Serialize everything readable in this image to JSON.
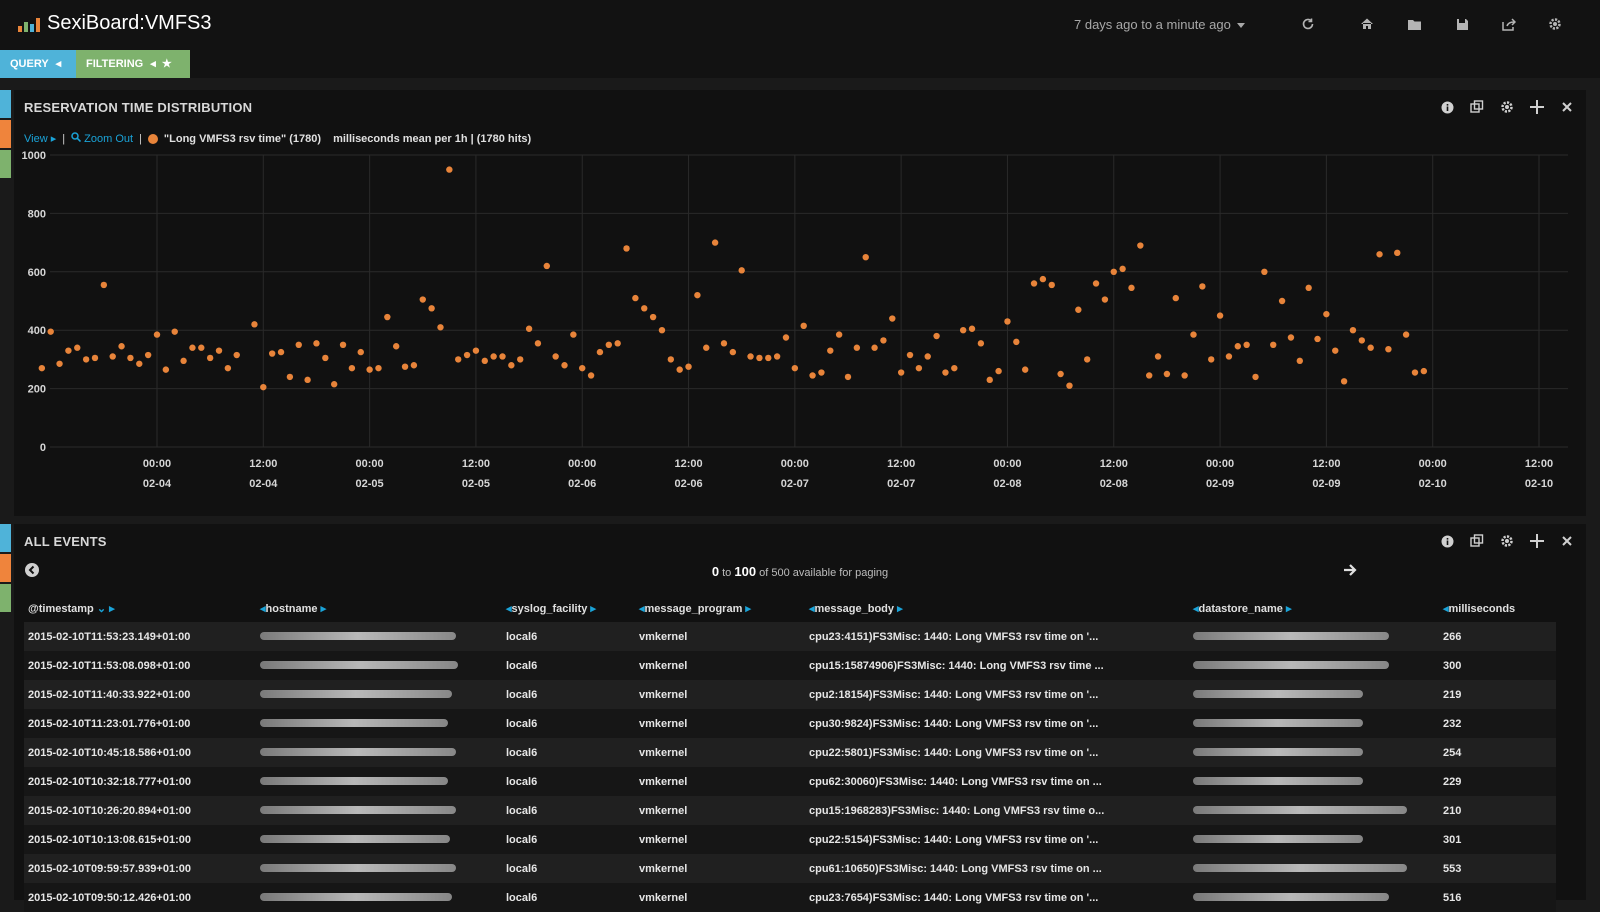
{
  "app": {
    "title": "SexiBoard:VMFS3",
    "time_range": "7 days ago to a minute ago",
    "nav_icons": [
      "refresh-icon",
      "home-icon",
      "folder-icon",
      "save-icon",
      "share-icon",
      "gear-icon"
    ]
  },
  "tabs": [
    {
      "label": "QUERY",
      "icon": "caret-left-icon",
      "color": "#4fb3d9"
    },
    {
      "label": "FILTERING",
      "icon": "star-icon",
      "color": "#7eb26d"
    }
  ],
  "gutter_colors": [
    "#4fb3d9",
    "#ef843c",
    "#7eb26d"
  ],
  "histogram_panel": {
    "title": "RESERVATION TIME DISTRIBUTION",
    "view_link": "View",
    "zoom_out_link": "Zoom Out",
    "legend_series": "\"Long VMFS3 rsv time\" (1780)",
    "legend_metric": "milliseconds mean per 1h | (1780 hits)",
    "tool_icons": [
      "info-icon",
      "copy-icon",
      "gear-icon",
      "move-icon",
      "close-icon"
    ]
  },
  "chart_data": {
    "type": "scatter",
    "series": [
      {
        "name": "\"Long VMFS3 rsv time\" (1780)",
        "color": "#e8843a"
      }
    ],
    "ylim": [
      0,
      1000
    ],
    "y_ticks": [
      0,
      200,
      400,
      600,
      800,
      1000
    ],
    "x_unit": "hours since 02-03 00:00",
    "x_ticks": [
      {
        "h": 24,
        "time": "00:00",
        "date": "02-04"
      },
      {
        "h": 36,
        "time": "12:00",
        "date": "02-04"
      },
      {
        "h": 48,
        "time": "00:00",
        "date": "02-05"
      },
      {
        "h": 60,
        "time": "12:00",
        "date": "02-05"
      },
      {
        "h": 72,
        "time": "00:00",
        "date": "02-06"
      },
      {
        "h": 84,
        "time": "12:00",
        "date": "02-06"
      },
      {
        "h": 96,
        "time": "00:00",
        "date": "02-07"
      },
      {
        "h": 108,
        "time": "12:00",
        "date": "02-07"
      },
      {
        "h": 120,
        "time": "00:00",
        "date": "02-08"
      },
      {
        "h": 132,
        "time": "12:00",
        "date": "02-08"
      },
      {
        "h": 144,
        "time": "00:00",
        "date": "02-09"
      },
      {
        "h": 156,
        "time": "12:00",
        "date": "02-09"
      },
      {
        "h": 168,
        "time": "00:00",
        "date": "02-10"
      },
      {
        "h": 180,
        "time": "12:00",
        "date": "02-10"
      }
    ],
    "xlim": [
      11,
      180
    ],
    "points": [
      [
        11,
        270
      ],
      [
        12,
        395
      ],
      [
        13,
        285
      ],
      [
        14,
        330
      ],
      [
        15,
        340
      ],
      [
        16,
        300
      ],
      [
        17,
        305
      ],
      [
        18,
        555
      ],
      [
        19,
        310
      ],
      [
        20,
        345
      ],
      [
        21,
        305
      ],
      [
        22,
        285
      ],
      [
        23,
        315
      ],
      [
        24,
        385
      ],
      [
        25,
        265
      ],
      [
        26,
        395
      ],
      [
        27,
        295
      ],
      [
        28,
        340
      ],
      [
        29,
        340
      ],
      [
        30,
        305
      ],
      [
        31,
        330
      ],
      [
        32,
        270
      ],
      [
        33,
        315
      ],
      [
        35,
        420
      ],
      [
        36,
        205
      ],
      [
        37,
        320
      ],
      [
        38,
        325
      ],
      [
        39,
        240
      ],
      [
        40,
        350
      ],
      [
        41,
        230
      ],
      [
        42,
        355
      ],
      [
        43,
        305
      ],
      [
        44,
        215
      ],
      [
        45,
        350
      ],
      [
        46,
        270
      ],
      [
        47,
        325
      ],
      [
        48,
        265
      ],
      [
        49,
        270
      ],
      [
        50,
        445
      ],
      [
        51,
        345
      ],
      [
        52,
        275
      ],
      [
        53,
        280
      ],
      [
        54,
        505
      ],
      [
        55,
        475
      ],
      [
        56,
        410
      ],
      [
        57,
        950
      ],
      [
        58,
        300
      ],
      [
        59,
        315
      ],
      [
        60,
        330
      ],
      [
        61,
        295
      ],
      [
        62,
        310
      ],
      [
        63,
        310
      ],
      [
        64,
        280
      ],
      [
        65,
        300
      ],
      [
        66,
        405
      ],
      [
        67,
        355
      ],
      [
        68,
        620
      ],
      [
        69,
        310
      ],
      [
        70,
        280
      ],
      [
        71,
        385
      ],
      [
        72,
        270
      ],
      [
        73,
        245
      ],
      [
        74,
        325
      ],
      [
        75,
        350
      ],
      [
        76,
        355
      ],
      [
        77,
        680
      ],
      [
        78,
        510
      ],
      [
        79,
        475
      ],
      [
        80,
        445
      ],
      [
        81,
        400
      ],
      [
        82,
        300
      ],
      [
        83,
        265
      ],
      [
        84,
        275
      ],
      [
        85,
        520
      ],
      [
        86,
        340
      ],
      [
        87,
        700
      ],
      [
        88,
        355
      ],
      [
        89,
        325
      ],
      [
        90,
        605
      ],
      [
        91,
        310
      ],
      [
        92,
        305
      ],
      [
        93,
        305
      ],
      [
        94,
        310
      ],
      [
        95,
        375
      ],
      [
        96,
        270
      ],
      [
        97,
        415
      ],
      [
        98,
        245
      ],
      [
        99,
        255
      ],
      [
        100,
        330
      ],
      [
        101,
        385
      ],
      [
        102,
        240
      ],
      [
        103,
        340
      ],
      [
        104,
        650
      ],
      [
        105,
        340
      ],
      [
        106,
        365
      ],
      [
        107,
        440
      ],
      [
        108,
        255
      ],
      [
        109,
        315
      ],
      [
        110,
        270
      ],
      [
        111,
        310
      ],
      [
        112,
        380
      ],
      [
        113,
        255
      ],
      [
        114,
        270
      ],
      [
        115,
        400
      ],
      [
        116,
        405
      ],
      [
        117,
        355
      ],
      [
        118,
        230
      ],
      [
        119,
        260
      ],
      [
        120,
        430
      ],
      [
        121,
        360
      ],
      [
        122,
        265
      ],
      [
        123,
        560
      ],
      [
        124,
        575
      ],
      [
        125,
        555
      ],
      [
        126,
        250
      ],
      [
        127,
        210
      ],
      [
        128,
        470
      ],
      [
        129,
        300
      ],
      [
        130,
        560
      ],
      [
        131,
        505
      ],
      [
        132,
        600
      ],
      [
        133,
        610
      ],
      [
        134,
        545
      ],
      [
        135,
        690
      ],
      [
        136,
        245
      ],
      [
        137,
        310
      ],
      [
        138,
        250
      ],
      [
        139,
        510
      ],
      [
        140,
        245
      ],
      [
        141,
        385
      ],
      [
        142,
        550
      ],
      [
        143,
        300
      ],
      [
        144,
        450
      ],
      [
        145,
        310
      ],
      [
        146,
        345
      ],
      [
        147,
        350
      ],
      [
        148,
        240
      ],
      [
        149,
        600
      ],
      [
        150,
        350
      ],
      [
        151,
        500
      ],
      [
        152,
        375
      ],
      [
        153,
        295
      ],
      [
        154,
        545
      ],
      [
        155,
        370
      ],
      [
        156,
        455
      ],
      [
        157,
        330
      ],
      [
        158,
        225
      ],
      [
        159,
        400
      ],
      [
        160,
        365
      ],
      [
        161,
        340
      ],
      [
        162,
        660
      ],
      [
        163,
        335
      ],
      [
        164,
        665
      ],
      [
        165,
        385
      ],
      [
        166,
        255
      ],
      [
        167,
        260
      ]
    ]
  },
  "events_panel": {
    "title": "ALL EVENTS",
    "paging_from": "0",
    "paging_to_word": "to",
    "paging_to": "100",
    "paging_suffix": "of 500 available for paging",
    "tool_icons": [
      "info-icon",
      "copy-icon",
      "gear-icon",
      "move-icon",
      "close-icon"
    ],
    "columns": [
      "@timestamp",
      "hostname",
      "syslog_facility",
      "message_program",
      "message_body",
      "datastore_name",
      "milliseconds"
    ],
    "rows": [
      {
        "timestamp": "2015-02-10T11:53:23.149+01:00",
        "facility": "local6",
        "program": "vmkernel",
        "body": "cpu23:4151)FS3Misc: 1440: Long VMFS3 rsv time on '...",
        "ms": "266"
      },
      {
        "timestamp": "2015-02-10T11:53:08.098+01:00",
        "facility": "local6",
        "program": "vmkernel",
        "body": "cpu15:15874906)FS3Misc: 1440: Long VMFS3 rsv time ...",
        "ms": "300"
      },
      {
        "timestamp": "2015-02-10T11:40:33.922+01:00",
        "facility": "local6",
        "program": "vmkernel",
        "body": "cpu2:18154)FS3Misc: 1440: Long VMFS3 rsv time on '...",
        "ms": "219"
      },
      {
        "timestamp": "2015-02-10T11:23:01.776+01:00",
        "facility": "local6",
        "program": "vmkernel",
        "body": "cpu30:9824)FS3Misc: 1440: Long VMFS3 rsv time on '...",
        "ms": "232"
      },
      {
        "timestamp": "2015-02-10T10:45:18.586+01:00",
        "facility": "local6",
        "program": "vmkernel",
        "body": "cpu22:5801)FS3Misc: 1440: Long VMFS3 rsv time on '...",
        "ms": "254"
      },
      {
        "timestamp": "2015-02-10T10:32:18.777+01:00",
        "facility": "local6",
        "program": "vmkernel",
        "body": "cpu62:30060)FS3Misc: 1440: Long VMFS3 rsv time on ...",
        "ms": "229"
      },
      {
        "timestamp": "2015-02-10T10:26:20.894+01:00",
        "facility": "local6",
        "program": "vmkernel",
        "body": "cpu15:1968283)FS3Misc: 1440: Long VMFS3 rsv time o...",
        "ms": "210"
      },
      {
        "timestamp": "2015-02-10T10:13:08.615+01:00",
        "facility": "local6",
        "program": "vmkernel",
        "body": "cpu22:5154)FS3Misc: 1440: Long VMFS3 rsv time on '...",
        "ms": "301"
      },
      {
        "timestamp": "2015-02-10T09:59:57.939+01:00",
        "facility": "local6",
        "program": "vmkernel",
        "body": "cpu61:10650)FS3Misc: 1440: Long VMFS3 rsv time on ...",
        "ms": "553"
      },
      {
        "timestamp": "2015-02-10T09:50:12.426+01:00",
        "facility": "local6",
        "program": "vmkernel",
        "body": "cpu23:7654)FS3Misc: 1440: Long VMFS3 rsv time on '...",
        "ms": "516"
      }
    ]
  }
}
